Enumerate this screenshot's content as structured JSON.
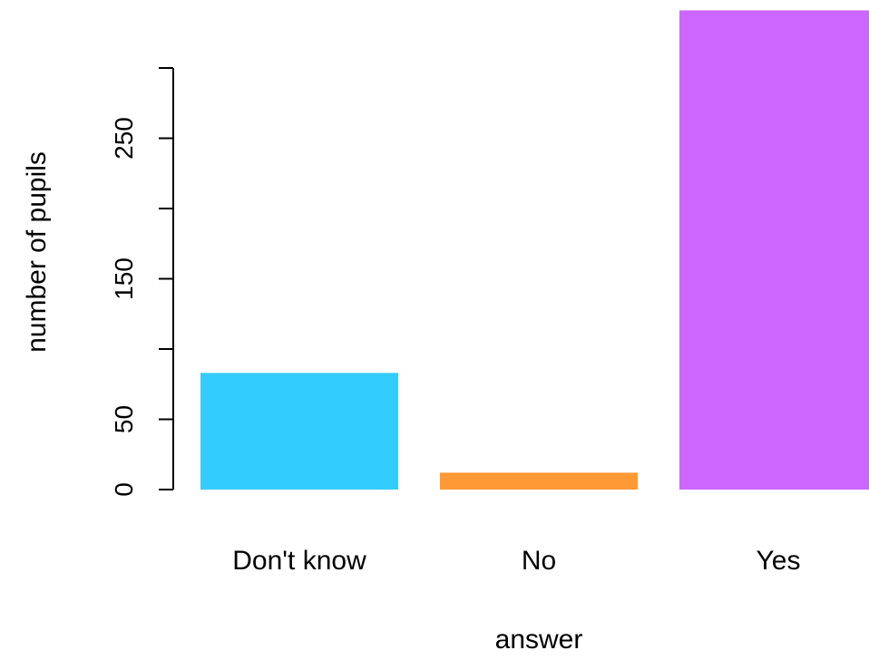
{
  "chart_data": {
    "type": "bar",
    "categories": [
      "Don't know",
      "No",
      "Yes"
    ],
    "values": [
      83,
      12,
      341
    ],
    "colors": [
      "#33ccff",
      "#ff9933",
      "#cc66ff"
    ],
    "xlabel": "answer",
    "ylabel": "number of pupils",
    "ylim": [
      0,
      341
    ],
    "y_ticks": [
      0,
      50,
      100,
      150,
      200,
      250,
      300
    ],
    "y_tick_labels": [
      "0",
      "50",
      "",
      "150",
      "",
      "250",
      ""
    ],
    "grid": false,
    "legend": "none"
  }
}
